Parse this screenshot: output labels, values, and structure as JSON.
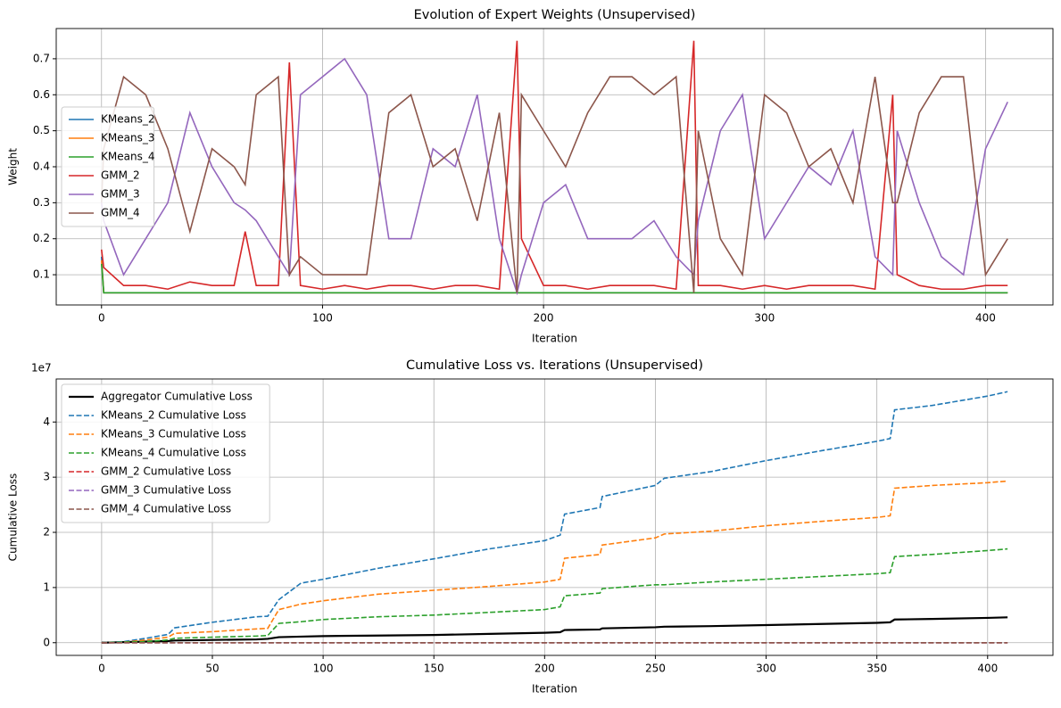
{
  "chart_data": [
    {
      "type": "line",
      "title": "Evolution of Expert Weights (Unsupervised)",
      "xlabel": "Iteration",
      "ylabel": "Weight",
      "x": [
        0,
        1,
        10,
        20,
        30,
        40,
        50,
        60,
        65,
        70,
        80,
        85,
        90,
        100,
        110,
        120,
        130,
        140,
        150,
        160,
        170,
        180,
        188,
        190,
        200,
        210,
        220,
        230,
        240,
        250,
        260,
        268,
        270,
        280,
        290,
        300,
        310,
        320,
        330,
        340,
        350,
        358,
        360,
        370,
        380,
        390,
        400,
        410
      ],
      "series": [
        {
          "name": "KMeans_2",
          "color": "#1f77b4",
          "values": [
            0.15,
            0.05,
            0.05,
            0.05,
            0.05,
            0.05,
            0.05,
            0.05,
            0.05,
            0.05,
            0.05,
            0.05,
            0.05,
            0.05,
            0.05,
            0.05,
            0.05,
            0.05,
            0.05,
            0.05,
            0.05,
            0.05,
            0.05,
            0.05,
            0.05,
            0.05,
            0.05,
            0.05,
            0.05,
            0.05,
            0.05,
            0.05,
            0.05,
            0.05,
            0.05,
            0.05,
            0.05,
            0.05,
            0.05,
            0.05,
            0.05,
            0.05,
            0.05,
            0.05,
            0.05,
            0.05,
            0.05,
            0.05
          ]
        },
        {
          "name": "KMeans_3",
          "color": "#ff7f0e",
          "values": [
            0.14,
            0.05,
            0.05,
            0.05,
            0.05,
            0.05,
            0.05,
            0.05,
            0.05,
            0.05,
            0.05,
            0.05,
            0.05,
            0.05,
            0.05,
            0.05,
            0.05,
            0.05,
            0.05,
            0.05,
            0.05,
            0.05,
            0.05,
            0.05,
            0.05,
            0.05,
            0.05,
            0.05,
            0.05,
            0.05,
            0.05,
            0.05,
            0.05,
            0.05,
            0.05,
            0.05,
            0.05,
            0.05,
            0.05,
            0.05,
            0.05,
            0.05,
            0.05,
            0.05,
            0.05,
            0.05,
            0.05,
            0.05
          ]
        },
        {
          "name": "KMeans_4",
          "color": "#2ca02c",
          "values": [
            0.13,
            0.05,
            0.05,
            0.05,
            0.05,
            0.05,
            0.05,
            0.05,
            0.05,
            0.05,
            0.05,
            0.05,
            0.05,
            0.05,
            0.05,
            0.05,
            0.05,
            0.05,
            0.05,
            0.05,
            0.05,
            0.05,
            0.05,
            0.05,
            0.05,
            0.05,
            0.05,
            0.05,
            0.05,
            0.05,
            0.05,
            0.05,
            0.05,
            0.05,
            0.05,
            0.05,
            0.05,
            0.05,
            0.05,
            0.05,
            0.05,
            0.05,
            0.05,
            0.05,
            0.05,
            0.05,
            0.05,
            0.05
          ]
        },
        {
          "name": "GMM_2",
          "color": "#d62728",
          "values": [
            0.17,
            0.12,
            0.07,
            0.07,
            0.06,
            0.08,
            0.07,
            0.07,
            0.22,
            0.07,
            0.07,
            0.69,
            0.07,
            0.06,
            0.07,
            0.06,
            0.07,
            0.07,
            0.06,
            0.07,
            0.07,
            0.06,
            0.75,
            0.2,
            0.07,
            0.07,
            0.06,
            0.07,
            0.07,
            0.07,
            0.06,
            0.75,
            0.07,
            0.07,
            0.06,
            0.07,
            0.06,
            0.07,
            0.07,
            0.07,
            0.06,
            0.6,
            0.1,
            0.07,
            0.06,
            0.06,
            0.07,
            0.07
          ]
        },
        {
          "name": "GMM_3",
          "color": "#9467bd",
          "values": [
            0.3,
            0.25,
            0.1,
            0.2,
            0.3,
            0.55,
            0.4,
            0.3,
            0.28,
            0.25,
            0.15,
            0.1,
            0.6,
            0.65,
            0.7,
            0.6,
            0.2,
            0.2,
            0.45,
            0.4,
            0.6,
            0.2,
            0.05,
            0.1,
            0.3,
            0.35,
            0.2,
            0.2,
            0.2,
            0.25,
            0.15,
            0.1,
            0.25,
            0.5,
            0.6,
            0.2,
            0.3,
            0.4,
            0.35,
            0.5,
            0.15,
            0.1,
            0.5,
            0.3,
            0.15,
            0.1,
            0.45,
            0.58
          ]
        },
        {
          "name": "GMM_4",
          "color": "#8c564b",
          "values": [
            0.3,
            0.45,
            0.65,
            0.6,
            0.45,
            0.22,
            0.45,
            0.4,
            0.35,
            0.6,
            0.65,
            0.1,
            0.15,
            0.1,
            0.1,
            0.1,
            0.55,
            0.6,
            0.4,
            0.45,
            0.25,
            0.55,
            0.05,
            0.6,
            0.5,
            0.4,
            0.55,
            0.65,
            0.65,
            0.6,
            0.65,
            0.05,
            0.5,
            0.2,
            0.1,
            0.6,
            0.55,
            0.4,
            0.45,
            0.3,
            0.65,
            0.3,
            0.3,
            0.55,
            0.65,
            0.65,
            0.1,
            0.2
          ]
        }
      ],
      "xlim": [
        -20.5,
        430.5
      ],
      "xticks": [
        0,
        100,
        200,
        300,
        400
      ],
      "ylim": [
        0.016,
        0.784
      ],
      "yticks": [
        0.1,
        0.2,
        0.3,
        0.4,
        0.5,
        0.6,
        0.7
      ],
      "grid": true,
      "legend": "center left"
    },
    {
      "type": "line",
      "title": "Cumulative Loss vs. Iterations (Unsupervised)",
      "xlabel": "Iteration",
      "ylabel": "Cumulative Loss",
      "y_offset_label": "1e7",
      "x": [
        0,
        10,
        20,
        30,
        33,
        50,
        70,
        75,
        80,
        90,
        100,
        125,
        150,
        175,
        200,
        207,
        209,
        225,
        226,
        250,
        254,
        275,
        300,
        325,
        350,
        356,
        358,
        375,
        400,
        409
      ],
      "series": [
        {
          "name": "Aggregator Cumulative Loss",
          "color": "#000000",
          "linestyle": "solid",
          "values": [
            0,
            0.01,
            0.02,
            0.03,
            0.04,
            0.05,
            0.06,
            0.07,
            0.1,
            0.11,
            0.12,
            0.13,
            0.14,
            0.16,
            0.18,
            0.19,
            0.23,
            0.24,
            0.26,
            0.28,
            0.29,
            0.3,
            0.32,
            0.34,
            0.36,
            0.37,
            0.42,
            0.43,
            0.45,
            0.46
          ]
        },
        {
          "name": "KMeans_2 Cumulative Loss",
          "color": "#1f77b4",
          "linestyle": "dashed",
          "values": [
            0,
            0.02,
            0.08,
            0.15,
            0.27,
            0.37,
            0.47,
            0.48,
            0.78,
            1.08,
            1.15,
            1.35,
            1.52,
            1.7,
            1.85,
            1.95,
            2.33,
            2.45,
            2.65,
            2.85,
            2.98,
            3.1,
            3.3,
            3.48,
            3.65,
            3.7,
            4.22,
            4.3,
            4.47,
            4.55
          ]
        },
        {
          "name": "KMeans_3 Cumulative Loss",
          "color": "#ff7f0e",
          "linestyle": "dashed",
          "values": [
            0,
            0.01,
            0.05,
            0.1,
            0.17,
            0.2,
            0.25,
            0.26,
            0.6,
            0.7,
            0.76,
            0.88,
            0.95,
            1.02,
            1.1,
            1.15,
            1.53,
            1.6,
            1.77,
            1.9,
            1.97,
            2.02,
            2.12,
            2.2,
            2.27,
            2.3,
            2.8,
            2.85,
            2.9,
            2.93
          ]
        },
        {
          "name": "KMeans_4 Cumulative Loss",
          "color": "#2ca02c",
          "linestyle": "dashed",
          "values": [
            0,
            0.01,
            0.02,
            0.05,
            0.08,
            0.1,
            0.12,
            0.13,
            0.35,
            0.38,
            0.42,
            0.47,
            0.5,
            0.55,
            0.6,
            0.65,
            0.85,
            0.9,
            0.98,
            1.05,
            1.05,
            1.1,
            1.15,
            1.2,
            1.25,
            1.27,
            1.56,
            1.6,
            1.67,
            1.7
          ]
        },
        {
          "name": "GMM_2 Cumulative Loss",
          "color": "#d62728",
          "linestyle": "dashed",
          "values": [
            0,
            0,
            0,
            0,
            0,
            0,
            0,
            0,
            0,
            0,
            0,
            0,
            0,
            0,
            0,
            0,
            0,
            0,
            0,
            0,
            0,
            0,
            0,
            0,
            0,
            0,
            0,
            0,
            0,
            0
          ]
        },
        {
          "name": "GMM_3 Cumulative Loss",
          "color": "#9467bd",
          "linestyle": "dashed",
          "values": [
            0,
            0,
            0,
            0,
            0,
            0,
            0,
            0,
            0,
            0,
            0,
            0,
            0,
            0,
            0,
            0,
            0,
            0,
            0,
            0,
            0,
            0,
            0,
            0,
            0,
            0,
            0,
            0,
            0,
            0
          ]
        },
        {
          "name": "GMM_4 Cumulative Loss",
          "color": "#8c564b",
          "linestyle": "dashed",
          "values": [
            0,
            0,
            0,
            0,
            0,
            0,
            0,
            0,
            0,
            0,
            0,
            0,
            0,
            0,
            0,
            0,
            0,
            0,
            0,
            0,
            0,
            0,
            0,
            0,
            0,
            0,
            0,
            0,
            0,
            0
          ]
        }
      ],
      "xlim": [
        -20.5,
        429.5
      ],
      "xticks": [
        0,
        50,
        100,
        150,
        200,
        250,
        300,
        350,
        400
      ],
      "ylim": [
        -0.23,
        4.78
      ],
      "yticks": [
        0,
        1,
        2,
        3,
        4
      ],
      "grid": true,
      "legend": "upper left"
    }
  ]
}
